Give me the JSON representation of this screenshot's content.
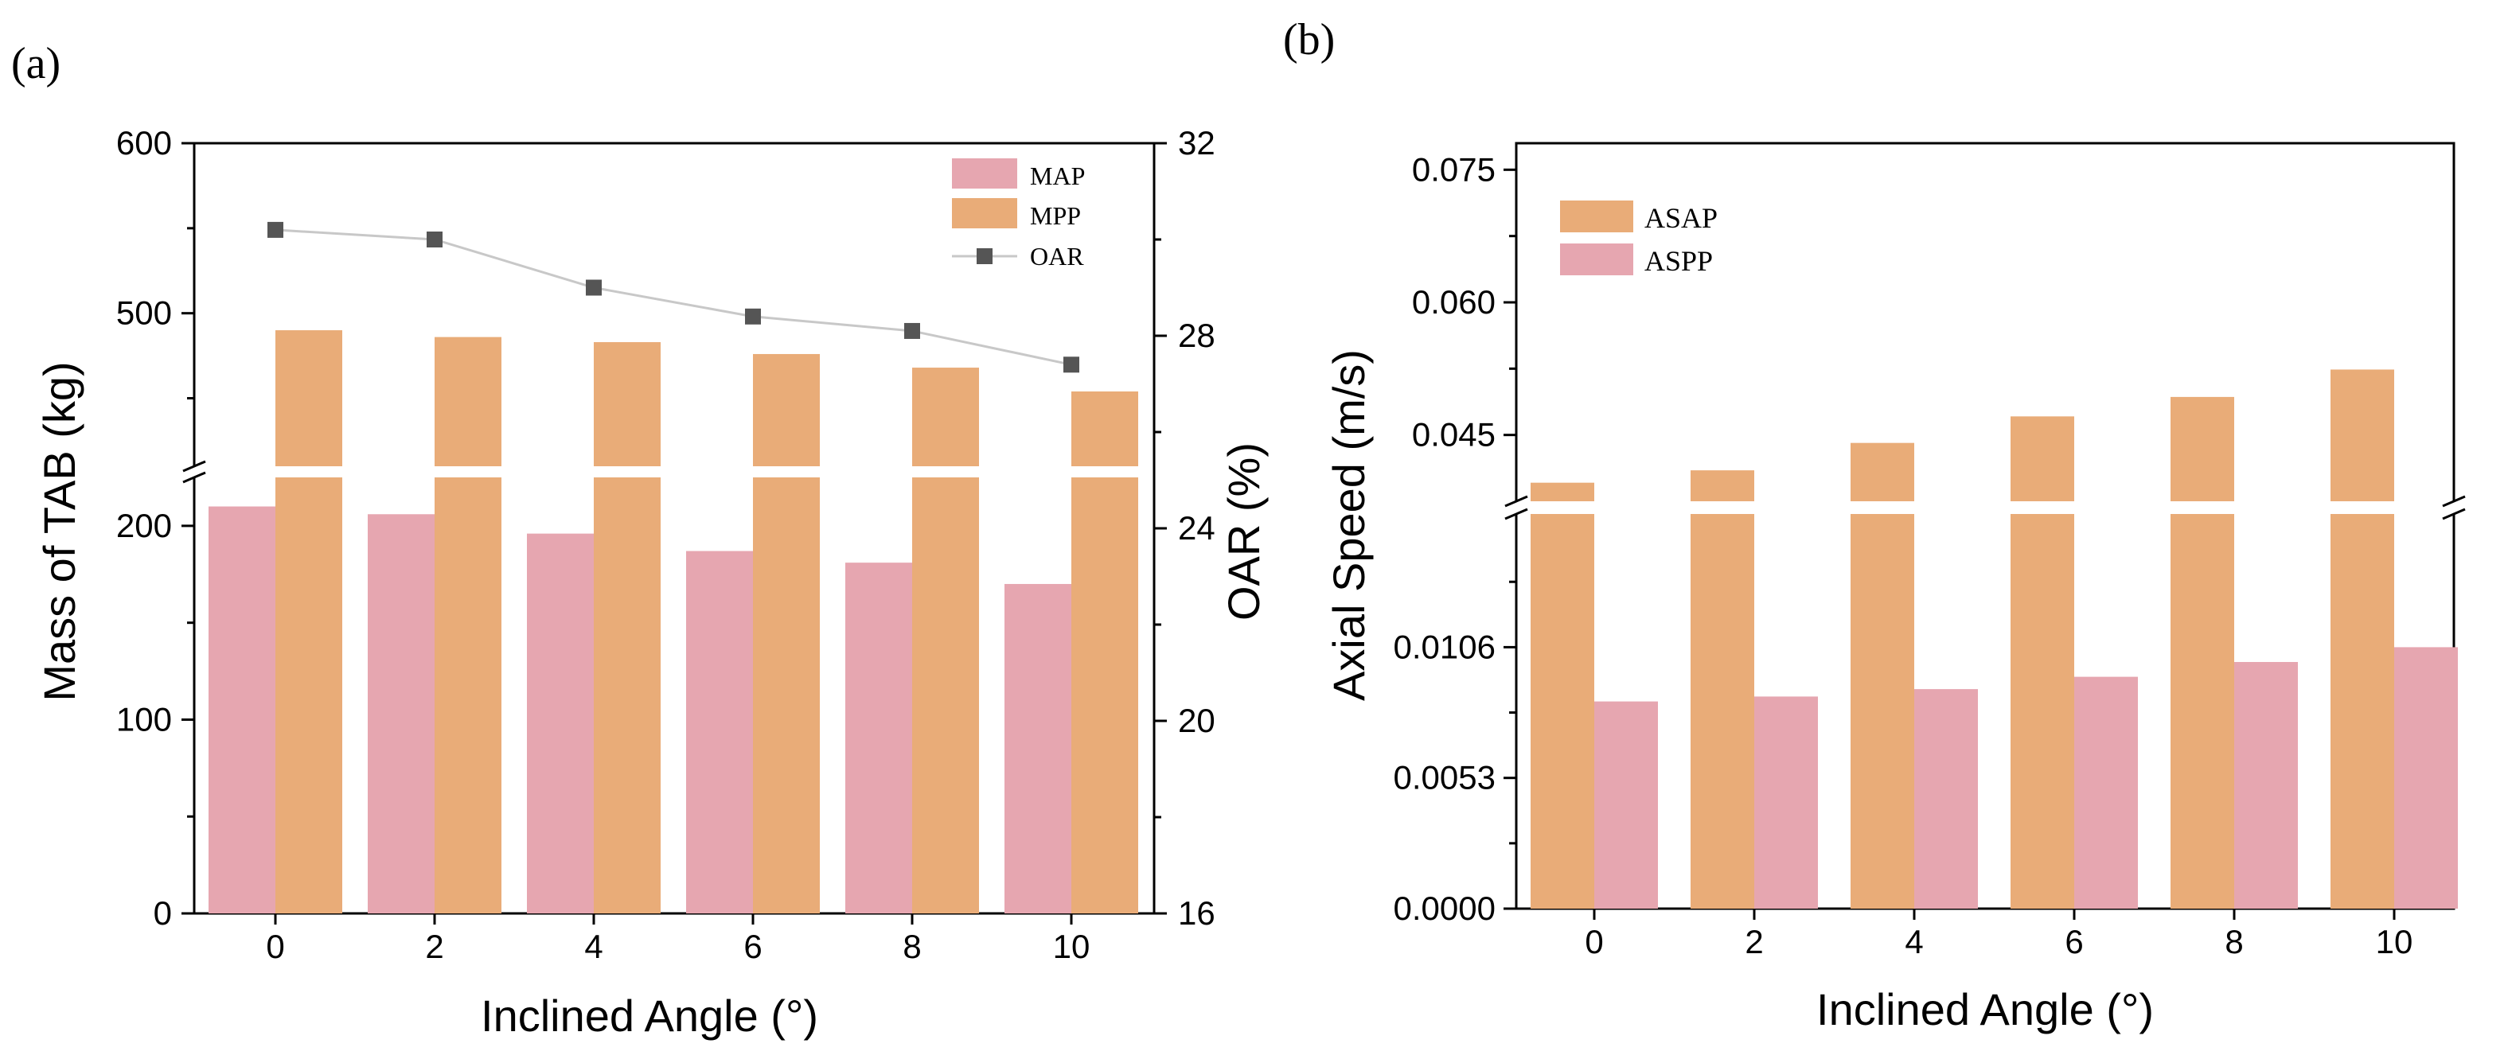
{
  "colors": {
    "map": "#e6a6b0",
    "mpp": "#e9ac78",
    "oar": "#555555",
    "oar_line": "#c8c8c8",
    "axis": "#000000"
  },
  "panels": {
    "a_label": "(a)",
    "b_label": "(b)"
  },
  "chart_data": [
    {
      "panel": "(a)",
      "type": "bar",
      "categories": [
        "0",
        "2",
        "4",
        "6",
        "8",
        "10"
      ],
      "series": [
        {
          "name": "MAP",
          "values": [
            210,
            206,
            196,
            187,
            181,
            170
          ]
        },
        {
          "name": "MPP",
          "values": [
            490,
            486,
            483,
            476,
            468,
            454
          ]
        }
      ],
      "line_series": {
        "name": "OAR",
        "axis": "right",
        "values": [
          30.2,
          30.0,
          29.0,
          28.4,
          28.1,
          27.4
        ]
      },
      "xlabel": "Inclined Angle (°)",
      "ylabel": "Mass of  TAB (kg)",
      "y2label": "OAR (%)",
      "ylim": [
        0,
        600
      ],
      "y_break": [
        225,
        410
      ],
      "yticks": [
        "0",
        "100",
        "200",
        "500",
        "600"
      ],
      "y2lim": [
        16,
        32
      ],
      "y2ticks": [
        "16",
        "20",
        "24",
        "28",
        "32"
      ],
      "legend": [
        "MAP",
        "MPP",
        "OAR"
      ]
    },
    {
      "panel": "(b)",
      "type": "bar",
      "categories": [
        "0",
        "2",
        "4",
        "6",
        "8",
        "10"
      ],
      "series": [
        {
          "name": "ASAP",
          "values": [
            0.0396,
            0.041,
            0.0441,
            0.0471,
            0.0493,
            0.0524
          ]
        },
        {
          "name": "ASPP",
          "values": [
            0.0084,
            0.0086,
            0.0089,
            0.0094,
            0.01,
            0.0106
          ]
        }
      ],
      "xlabel": "Inclined Angle (°)",
      "ylabel": "Axial Speed (m/s)",
      "ylim": [
        0,
        0.078
      ],
      "y_break": [
        0.016,
        0.0375
      ],
      "yticks": [
        "0.0000",
        "0.0053",
        "0.0106",
        "0.045",
        "0.060",
        "0.075"
      ],
      "legend": [
        "ASAP",
        "ASPP"
      ]
    }
  ]
}
